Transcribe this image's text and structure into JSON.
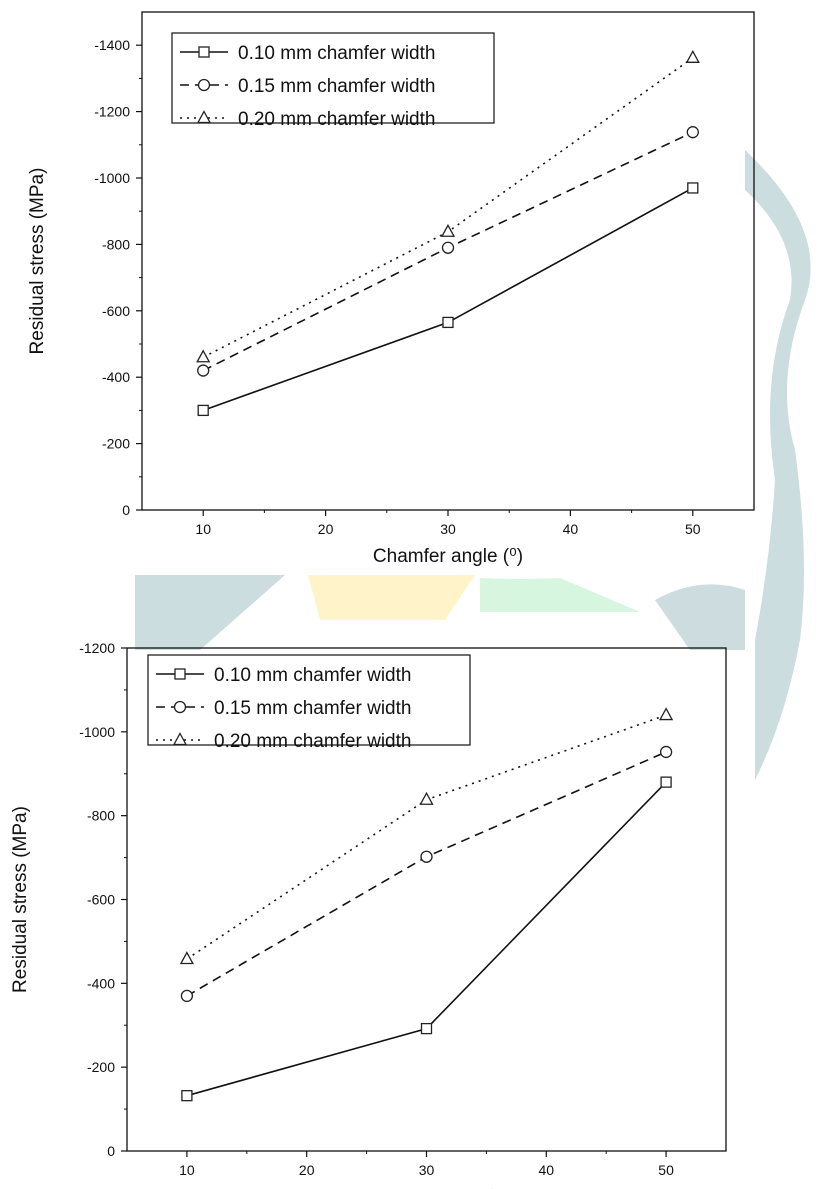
{
  "watermark_colors": {
    "teal": "#c7d9dc",
    "yellow": "#fff3c4",
    "green": "#d3f5dc"
  },
  "chart_data": [
    {
      "type": "line",
      "xlabel": "Chamfer angle (⁰)",
      "ylabel": "Residual stress (MPa)",
      "x": [
        10,
        30,
        50
      ],
      "xlim": [
        5,
        55
      ],
      "xticks": [
        "10",
        "20",
        "30",
        "40",
        "50"
      ],
      "ylim": [
        0,
        -1500
      ],
      "yticks": [
        "0",
        "-200",
        "-400",
        "-600",
        "-800",
        "-1000",
        "-1200",
        "-1400"
      ],
      "grid": false,
      "legend_position": "top-left",
      "series": [
        {
          "name": "0.10 mm chamfer width",
          "values": [
            -300,
            -565,
            -970
          ],
          "line": "solid",
          "marker": "square"
        },
        {
          "name": "0.15 mm chamfer width",
          "values": [
            -420,
            -790,
            -1138
          ],
          "line": "dashed",
          "marker": "circle"
        },
        {
          "name": "0.20 mm chamfer width",
          "values": [
            -460,
            -838,
            -1362
          ],
          "line": "dotted",
          "marker": "triangle"
        }
      ]
    },
    {
      "type": "line",
      "xlabel": "Chamfer angle (⁰)",
      "ylabel": "Residual stress (MPa)",
      "x": [
        10,
        30,
        50
      ],
      "xlim": [
        5,
        55
      ],
      "xticks": [
        "10",
        "20",
        "30",
        "40",
        "50"
      ],
      "ylim": [
        0,
        -1200
      ],
      "yticks": [
        "0",
        "-200",
        "-400",
        "-600",
        "-800",
        "-1000",
        "-1200"
      ],
      "grid": false,
      "legend_position": "top-left",
      "series": [
        {
          "name": "0.10 mm chamfer width",
          "values": [
            -132,
            -292,
            -880
          ],
          "line": "solid",
          "marker": "square"
        },
        {
          "name": "0.15 mm chamfer width",
          "values": [
            -370,
            -702,
            -952
          ],
          "line": "dashed",
          "marker": "circle"
        },
        {
          "name": "0.20 mm chamfer width",
          "values": [
            -458,
            -838,
            -1040
          ],
          "line": "dotted",
          "marker": "triangle"
        }
      ]
    }
  ]
}
